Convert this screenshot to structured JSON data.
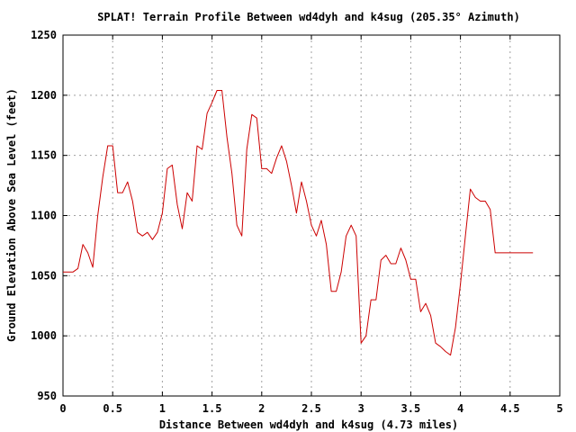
{
  "chart_data": {
    "type": "line",
    "title": "SPLAT! Terrain Profile Between wd4dyh and k4sug (205.35° Azimuth)",
    "xlabel": "Distance Between wd4dyh and k4sug (4.73 miles)",
    "ylabel": "Ground Elevation Above Sea Level (feet)",
    "xlim": [
      0,
      5
    ],
    "ylim": [
      950,
      1250
    ],
    "grid": true,
    "legend": "none",
    "x_ticks": [
      {
        "value": 0,
        "label": "0"
      },
      {
        "value": 0.5,
        "label": "0.5"
      },
      {
        "value": 1,
        "label": "1"
      },
      {
        "value": 1.5,
        "label": "1.5"
      },
      {
        "value": 2,
        "label": "2"
      },
      {
        "value": 2.5,
        "label": "2.5"
      },
      {
        "value": 3,
        "label": "3"
      },
      {
        "value": 3.5,
        "label": "3.5"
      },
      {
        "value": 4,
        "label": "4"
      },
      {
        "value": 4.5,
        "label": "4.5"
      },
      {
        "value": 5,
        "label": "5"
      }
    ],
    "y_ticks": [
      {
        "value": 950,
        "label": "950"
      },
      {
        "value": 1000,
        "label": "1000"
      },
      {
        "value": 1050,
        "label": "1050"
      },
      {
        "value": 1100,
        "label": "1100"
      },
      {
        "value": 1150,
        "label": "1150"
      },
      {
        "value": 1200,
        "label": "1200"
      },
      {
        "value": 1250,
        "label": "1250"
      }
    ],
    "series": [
      {
        "color": "#cc0000",
        "x": [
          0,
          0.05,
          0.1,
          0.15,
          0.2,
          0.25,
          0.3,
          0.35,
          0.4,
          0.45,
          0.5,
          0.55,
          0.6,
          0.65,
          0.7,
          0.75,
          0.8,
          0.85,
          0.9,
          0.95,
          1.0,
          1.05,
          1.1,
          1.15,
          1.2,
          1.25,
          1.3,
          1.35,
          1.4,
          1.45,
          1.5,
          1.55,
          1.6,
          1.65,
          1.7,
          1.75,
          1.8,
          1.85,
          1.9,
          1.95,
          2.0,
          2.05,
          2.1,
          2.15,
          2.2,
          2.25,
          2.3,
          2.35,
          2.4,
          2.45,
          2.5,
          2.55,
          2.6,
          2.65,
          2.7,
          2.75,
          2.8,
          2.85,
          2.9,
          2.95,
          3.0,
          3.05,
          3.1,
          3.15,
          3.2,
          3.25,
          3.3,
          3.35,
          3.4,
          3.45,
          3.5,
          3.55,
          3.6,
          3.65,
          3.7,
          3.75,
          3.8,
          3.85,
          3.9,
          3.95,
          4.0,
          4.05,
          4.1,
          4.15,
          4.2,
          4.25,
          4.3,
          4.35,
          4.4,
          4.45,
          4.5,
          4.55,
          4.6,
          4.65,
          4.7,
          4.73
        ],
        "y": [
          1053,
          1053,
          1053,
          1056,
          1076,
          1069,
          1057,
          1100,
          1132,
          1158,
          1158,
          1119,
          1119,
          1128,
          1112,
          1086,
          1083,
          1086,
          1080,
          1086,
          1102,
          1139,
          1142,
          1109,
          1089,
          1119,
          1112,
          1158,
          1155,
          1185,
          1194,
          1204,
          1204,
          1165,
          1135,
          1092,
          1083,
          1155,
          1184,
          1181,
          1139,
          1139,
          1135,
          1148,
          1158,
          1145,
          1125,
          1102,
          1128,
          1112,
          1092,
          1083,
          1096,
          1076,
          1037,
          1037,
          1053,
          1083,
          1092,
          1083,
          994,
          1000,
          1030,
          1030,
          1063,
          1067,
          1060,
          1060,
          1073,
          1063,
          1047,
          1047,
          1020,
          1027,
          1017,
          994,
          991,
          987,
          984,
          1007,
          1043,
          1083,
          1122,
          1115,
          1112,
          1112,
          1105,
          1069,
          1069,
          1069,
          1069,
          1069,
          1069,
          1069,
          1069,
          1069
        ]
      }
    ]
  }
}
